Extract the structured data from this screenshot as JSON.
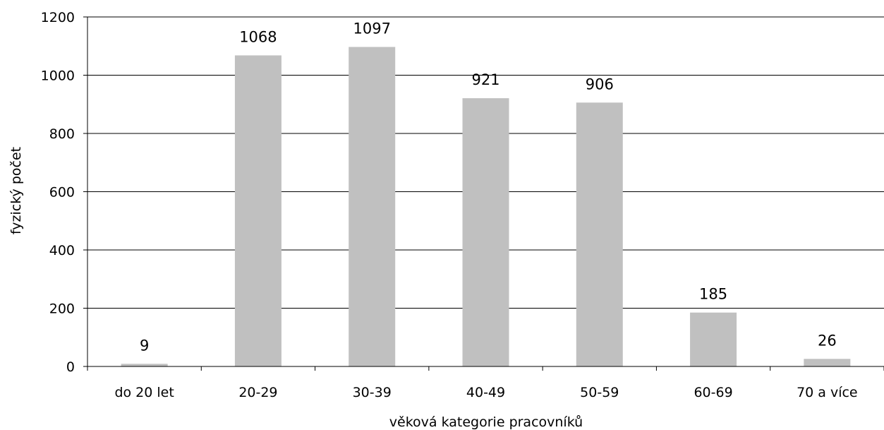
{
  "chart_data": {
    "type": "bar",
    "title": "",
    "xlabel": "věková kategorie pracovníků",
    "ylabel": "fyzický počet",
    "categories": [
      "do 20 let",
      "20-29",
      "30-39",
      "40-49",
      "50-59",
      "60-69",
      "70 a více"
    ],
    "values": [
      9,
      1068,
      1097,
      921,
      906,
      185,
      26
    ],
    "data_labels": [
      "9",
      "1068",
      "1097",
      "921",
      "906",
      "185",
      "26"
    ],
    "ylim": [
      0,
      1200
    ],
    "yticks": [
      0,
      200,
      400,
      600,
      800,
      1000,
      1200
    ],
    "ytick_labels": [
      "0",
      "200",
      "400",
      "600",
      "800",
      "1000",
      "1200"
    ],
    "grid": true,
    "legend": "none",
    "bar_color": "#c0c0c0",
    "grid_color": "#000000"
  }
}
